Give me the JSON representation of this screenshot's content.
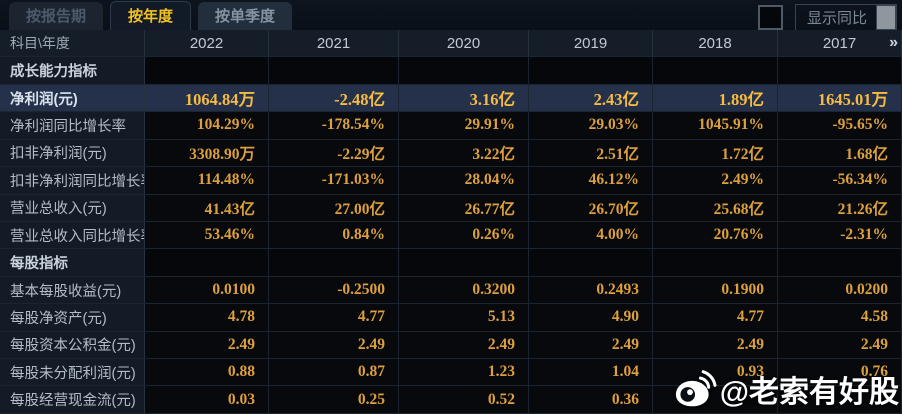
{
  "tabs": [
    {
      "label": "按报告期",
      "active": false
    },
    {
      "label": "按年度",
      "active": true
    },
    {
      "label": "按单季度",
      "active": false
    }
  ],
  "controls": {
    "checkbox_checked": false,
    "checkbox_label": "显示同比"
  },
  "table": {
    "corner": "科目\\年度",
    "years": [
      "2022",
      "2021",
      "2020",
      "2019",
      "2018",
      "2017"
    ],
    "more_icon": "»",
    "rows": [
      {
        "type": "section",
        "label": "成长能力指标"
      },
      {
        "type": "data",
        "label": "净利润(元)",
        "highlight": true,
        "values": [
          "1064.84万",
          "-2.48亿",
          "3.16亿",
          "2.43亿",
          "1.89亿",
          "1645.01万"
        ]
      },
      {
        "type": "data",
        "label": "净利润同比增长率",
        "values": [
          "104.29%",
          "-178.54%",
          "29.91%",
          "29.03%",
          "1045.91%",
          "-95.65%"
        ]
      },
      {
        "type": "data",
        "label": "扣非净利润(元)",
        "values": [
          "3308.90万",
          "-2.29亿",
          "3.22亿",
          "2.51亿",
          "1.72亿",
          "1.68亿"
        ]
      },
      {
        "type": "data",
        "label": "扣非净利润同比增长率",
        "values": [
          "114.48%",
          "-171.03%",
          "28.04%",
          "46.12%",
          "2.49%",
          "-56.34%"
        ]
      },
      {
        "type": "data",
        "label": "营业总收入(元)",
        "values": [
          "41.43亿",
          "27.00亿",
          "26.77亿",
          "26.70亿",
          "25.68亿",
          "21.26亿"
        ]
      },
      {
        "type": "data",
        "label": "营业总收入同比增长率",
        "values": [
          "53.46%",
          "0.84%",
          "0.26%",
          "4.00%",
          "20.76%",
          "-2.31%"
        ]
      },
      {
        "type": "section",
        "label": "每股指标"
      },
      {
        "type": "data",
        "label": "基本每股收益(元)",
        "values": [
          "0.0100",
          "-0.2500",
          "0.3200",
          "0.2493",
          "0.1900",
          "0.0200"
        ]
      },
      {
        "type": "data",
        "label": "每股净资产(元)",
        "values": [
          "4.78",
          "4.77",
          "5.13",
          "4.90",
          "4.77",
          "4.58"
        ]
      },
      {
        "type": "data",
        "label": "每股资本公积金(元)",
        "values": [
          "2.49",
          "2.49",
          "2.49",
          "2.49",
          "2.49",
          "2.49"
        ]
      },
      {
        "type": "data",
        "label": "每股未分配利润(元)",
        "values": [
          "0.88",
          "0.87",
          "1.23",
          "1.04",
          "0.93",
          "0.76"
        ]
      },
      {
        "type": "data",
        "label": "每股经营现金流(元)",
        "values": [
          "0.03",
          "0.25",
          "0.52",
          "0.36",
          "",
          ""
        ]
      }
    ]
  },
  "watermark": {
    "icon": "weibo-icon",
    "handle": "@老索有好股"
  },
  "colors": {
    "active_tab_text": "#f2c31e",
    "value_text": "#dda03d",
    "highlight_row_bg": "#25304a",
    "highlight_value_text": "#f5bb42",
    "label_text": "#b2bdc8",
    "watermark_text": "#ffffff"
  }
}
